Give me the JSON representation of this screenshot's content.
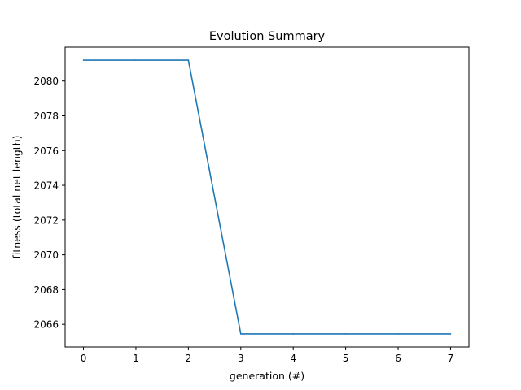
{
  "chart_data": {
    "type": "line",
    "title": "Evolution Summary",
    "xlabel": "generation (#)",
    "ylabel": "fitness (total net length)",
    "xlim": [
      -0.35,
      7.35
    ],
    "ylim": [
      2064.7,
      2081.95
    ],
    "xticks": [
      0,
      1,
      2,
      3,
      4,
      5,
      6,
      7
    ],
    "yticks": [
      2066,
      2068,
      2070,
      2072,
      2074,
      2076,
      2078,
      2080
    ],
    "grid": false,
    "series": [
      {
        "x": [
          0,
          1,
          2,
          3,
          4,
          5,
          6,
          7
        ],
        "y": [
          2081.2,
          2081.2,
          2081.2,
          2065.45,
          2065.45,
          2065.45,
          2065.45,
          2065.45
        ],
        "color": "#1f77b4"
      }
    ]
  }
}
